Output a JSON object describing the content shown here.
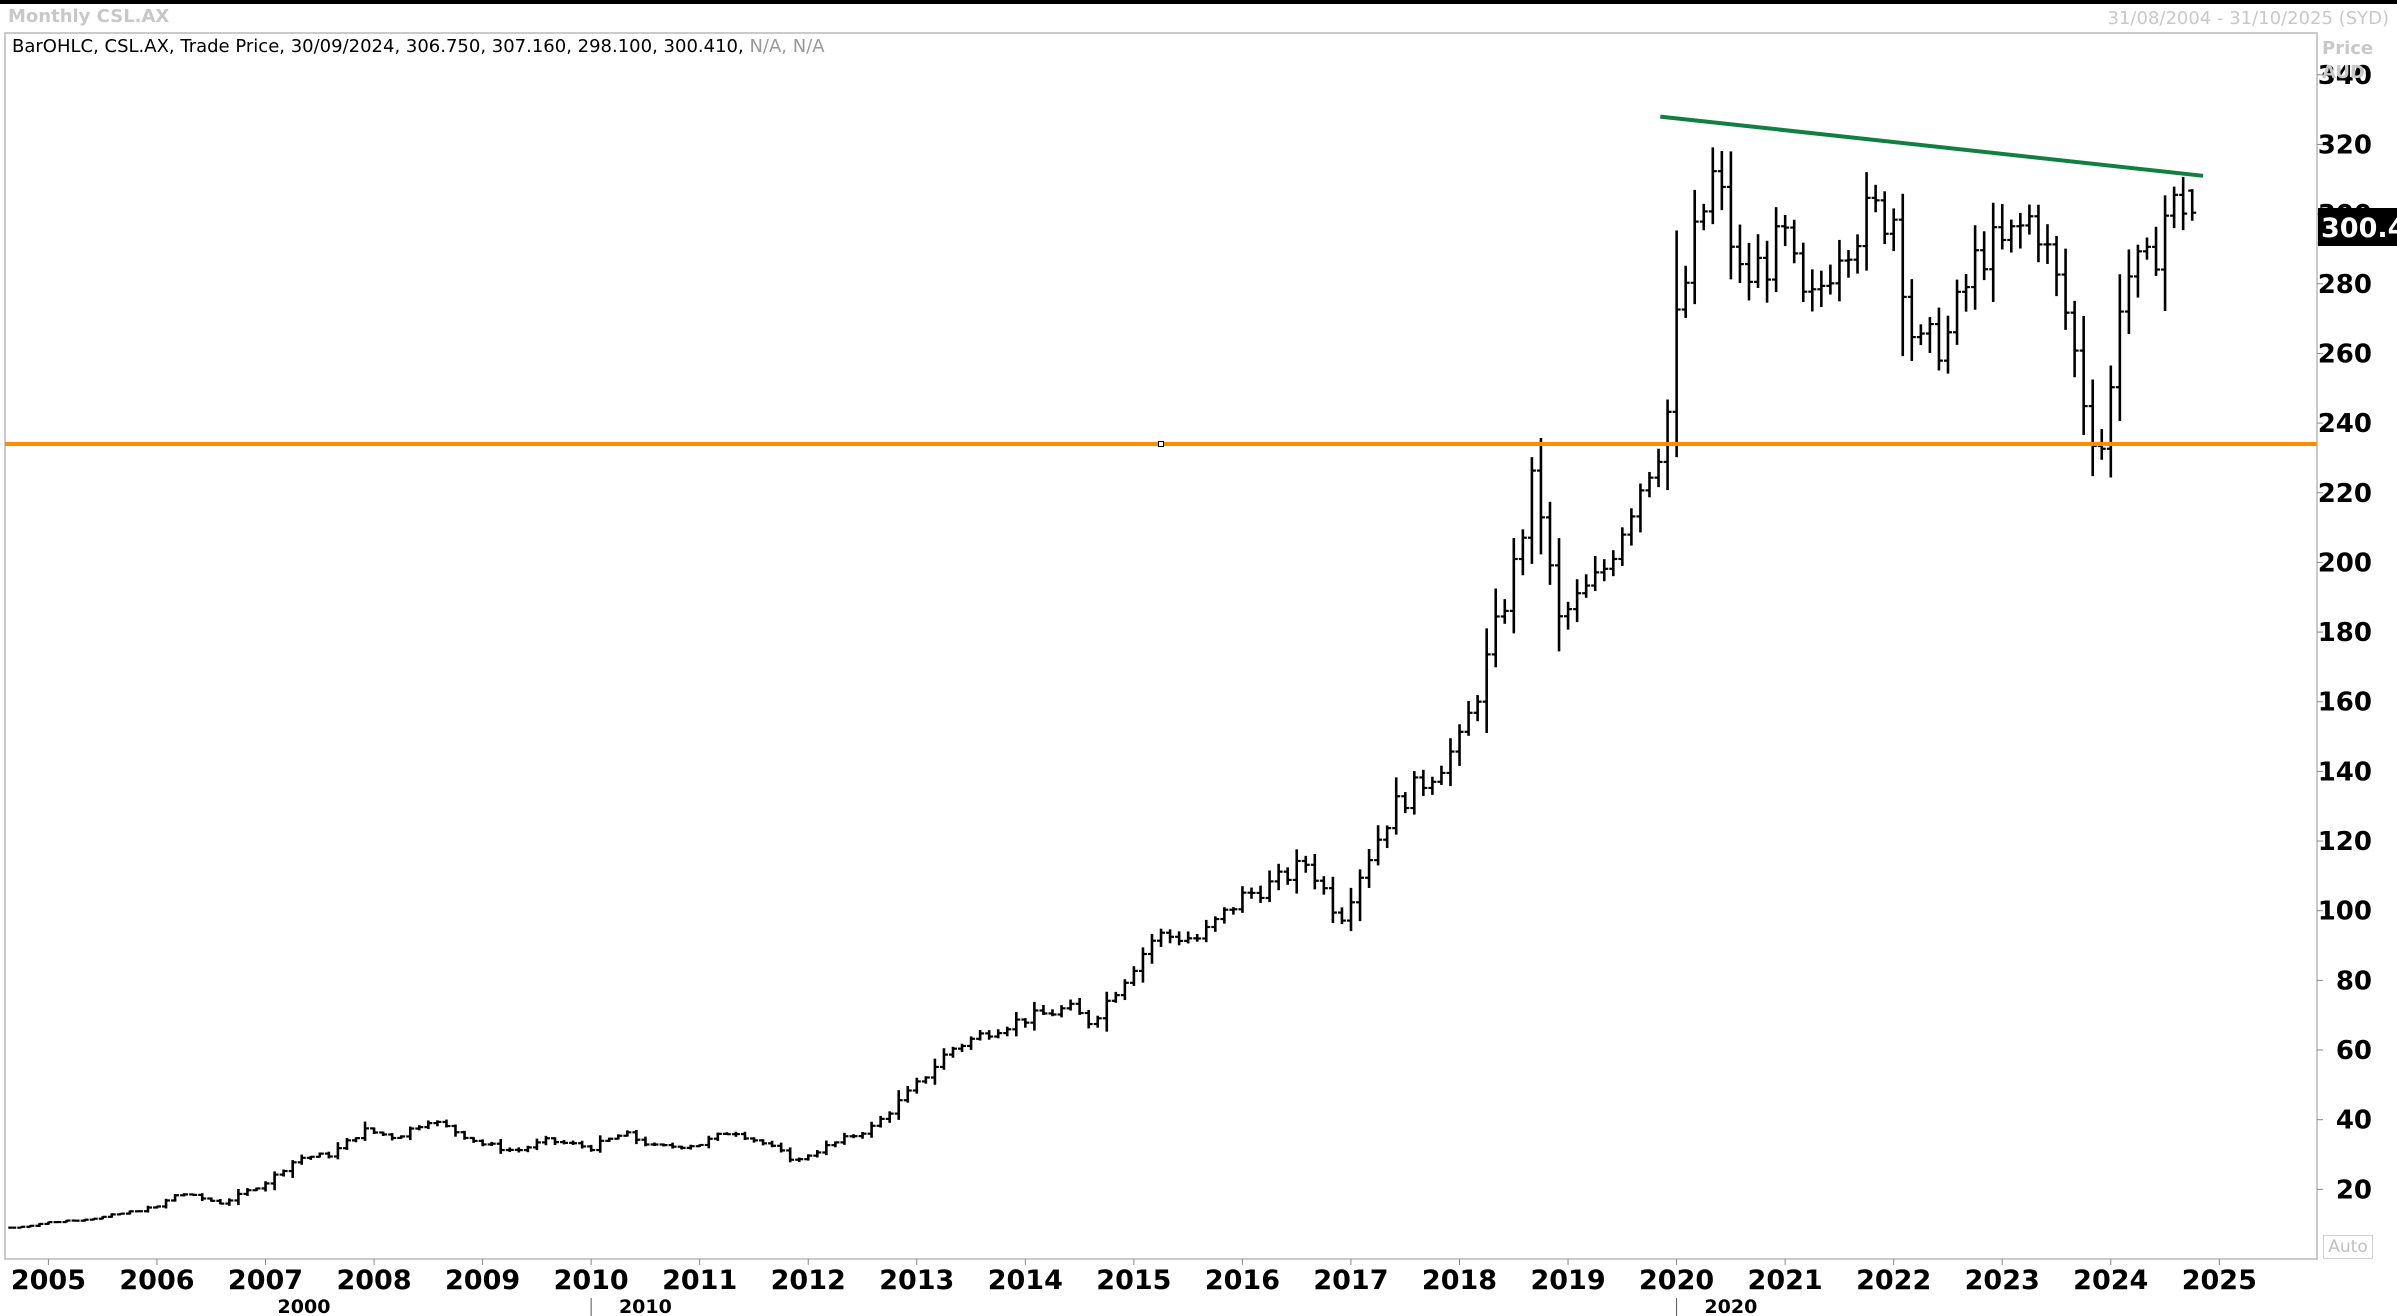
{
  "header": {
    "title": "Monthly CSL.AX",
    "date_range": "31/08/2004 - 31/10/2025 (SYD)"
  },
  "legend": {
    "main": "BarOHLC, CSL.AX, Trade Price, 30/09/2024, 306.750, 307.160, 298.100, 300.410,",
    "na": "N/A, N/A"
  },
  "axis": {
    "price_label": "Price",
    "currency_label": "AUD",
    "auto_button": "Auto",
    "last_price_label": "300.4"
  },
  "colors": {
    "bars": "#000000",
    "support_line": "#ff8c00",
    "trend_line": "#108040",
    "last_price_box": "#000000"
  },
  "chart_data": {
    "type": "ohlc",
    "ylim": [
      0,
      352
    ],
    "xlim": [
      2004.6,
      2025.9
    ],
    "y_ticks": [
      20,
      40,
      60,
      80,
      100,
      120,
      140,
      160,
      180,
      200,
      220,
      240,
      260,
      280,
      300,
      320,
      340
    ],
    "x_ticks": [
      "2005",
      "2006",
      "2007",
      "2008",
      "2009",
      "2010",
      "2011",
      "2012",
      "2013",
      "2014",
      "2015",
      "2016",
      "2017",
      "2018",
      "2019",
      "2020",
      "2021",
      "2022",
      "2023",
      "2024",
      "2025"
    ],
    "decade_ticks": [
      "2000",
      "2010",
      "2020"
    ],
    "grid": false,
    "anchor_prices": [
      [
        2004.67,
        9
      ],
      [
        2005.0,
        10.5
      ],
      [
        2005.5,
        12
      ],
      [
        2006.0,
        15
      ],
      [
        2006.2,
        19
      ],
      [
        2006.6,
        16
      ],
      [
        2007.0,
        22
      ],
      [
        2007.3,
        29
      ],
      [
        2007.6,
        30
      ],
      [
        2007.9,
        37
      ],
      [
        2008.2,
        35
      ],
      [
        2008.5,
        40
      ],
      [
        2008.8,
        36
      ],
      [
        2009.0,
        33
      ],
      [
        2009.3,
        31
      ],
      [
        2009.6,
        34
      ],
      [
        2010.0,
        32
      ],
      [
        2010.3,
        36
      ],
      [
        2010.6,
        32
      ],
      [
        2011.0,
        33
      ],
      [
        2011.3,
        37
      ],
      [
        2011.6,
        33
      ],
      [
        2011.9,
        28
      ],
      [
        2012.0,
        30
      ],
      [
        2012.3,
        34
      ],
      [
        2012.6,
        38
      ],
      [
        2013.0,
        50
      ],
      [
        2013.3,
        60
      ],
      [
        2013.7,
        66
      ],
      [
        2014.0,
        69
      ],
      [
        2014.4,
        72
      ],
      [
        2014.6,
        68
      ],
      [
        2014.9,
        80
      ],
      [
        2015.2,
        93
      ],
      [
        2015.6,
        92
      ],
      [
        2016.0,
        104
      ],
      [
        2016.3,
        108
      ],
      [
        2016.6,
        114
      ],
      [
        2016.9,
        98
      ],
      [
        2017.1,
        112
      ],
      [
        2017.4,
        130
      ],
      [
        2017.7,
        138
      ],
      [
        2018.0,
        148
      ],
      [
        2018.2,
        166
      ],
      [
        2018.5,
        198
      ],
      [
        2018.7,
        226
      ],
      [
        2018.9,
        182
      ],
      [
        2019.0,
        186
      ],
      [
        2019.3,
        196
      ],
      [
        2019.6,
        218
      ],
      [
        2019.9,
        238
      ],
      [
        2020.0,
        268
      ],
      [
        2020.15,
        290
      ],
      [
        2020.35,
        312
      ],
      [
        2020.6,
        280
      ],
      [
        2021.0,
        292
      ],
      [
        2021.2,
        270
      ],
      [
        2021.5,
        292
      ],
      [
        2021.8,
        300
      ],
      [
        2022.0,
        300
      ],
      [
        2022.2,
        260
      ],
      [
        2022.5,
        265
      ],
      [
        2022.8,
        290
      ],
      [
        2023.0,
        290
      ],
      [
        2023.3,
        300
      ],
      [
        2023.6,
        270
      ],
      [
        2023.8,
        240
      ],
      [
        2023.95,
        232
      ],
      [
        2024.1,
        282
      ],
      [
        2024.35,
        284
      ],
      [
        2024.5,
        300
      ],
      [
        2024.7,
        304
      ],
      [
        2024.75,
        300.41
      ]
    ],
    "support_line": {
      "y": 234,
      "x_start": 2004.6,
      "x_end": 2025.9
    },
    "trend_line": {
      "start": [
        2019.85,
        328
      ],
      "end": [
        2024.85,
        311
      ]
    },
    "last_bar": {
      "date": "30/09/2024",
      "open": 306.75,
      "high": 307.16,
      "low": 298.1,
      "close": 300.41
    }
  }
}
